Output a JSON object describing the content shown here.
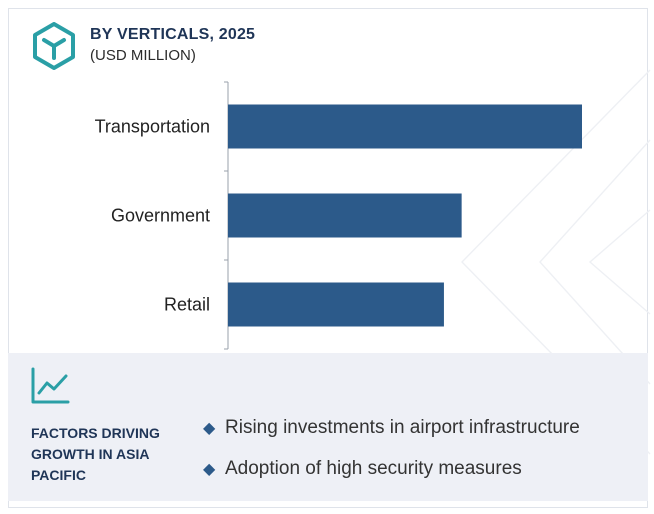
{
  "header": {
    "title": "BY VERTICALS, 2025",
    "subtitle": "(USD MILLION)"
  },
  "colors": {
    "bar": "#2c5a8a",
    "accent_teal": "#2a9fa6",
    "navy_text": "#1f3557",
    "panel_bg": "#eef0f6"
  },
  "icons": [
    "cube-logo-icon",
    "trend-chart-icon",
    "diamond-bullet-icon"
  ],
  "chart_data": {
    "type": "bar",
    "orientation": "horizontal",
    "categories": [
      "Transportation",
      "Government",
      "Retail"
    ],
    "values": [
      100,
      66,
      61
    ],
    "value_axis_shown": false,
    "grid": false,
    "legend": "none"
  },
  "factors": {
    "heading": "FACTORS DRIVING GROWTH IN ASIA PACIFIC",
    "items": [
      "Rising investments in airport infrastructure",
      "Adoption of high security measures"
    ]
  }
}
